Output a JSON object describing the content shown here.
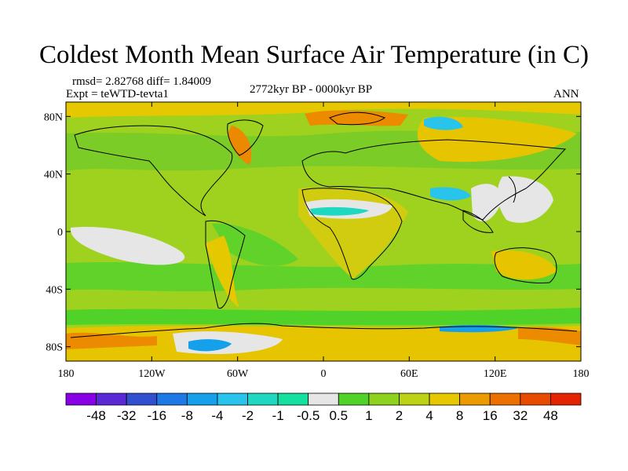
{
  "chart_data": {
    "type": "heatmap",
    "title": "Coldest Month Mean Surface Air Temperature (in C)",
    "stats": "rmsd= 2.82768 diff= 1.84009",
    "experiment": "Expt = teWTD-tevta1",
    "period": "2772kyr BP - 0000kyr BP",
    "season": "ANN",
    "x_ticks": [
      "180",
      "120W",
      "60W",
      "0",
      "60E",
      "120E",
      "180"
    ],
    "y_ticks": [
      "80N",
      "40N",
      "0",
      "40S",
      "80S"
    ],
    "x_range": [
      -180,
      180
    ],
    "y_range": [
      -90,
      90
    ],
    "colorbar_labels": [
      "-48",
      "-32",
      "-16",
      "-8",
      "-4",
      "-2",
      "-1",
      "-0.5",
      "0.5",
      "1",
      "2",
      "4",
      "8",
      "16",
      "32",
      "48"
    ],
    "colorbar_colors": [
      "#8a00e6",
      "#5a28d6",
      "#3050d0",
      "#1e78e6",
      "#14a0ea",
      "#28c4ec",
      "#1ed8c0",
      "#14e0a0",
      "#e6e6e6",
      "#50d228",
      "#8ed21e",
      "#bcd214",
      "#e6c800",
      "#eb9a00",
      "#ec7000",
      "#e84a00",
      "#e42400"
    ]
  }
}
